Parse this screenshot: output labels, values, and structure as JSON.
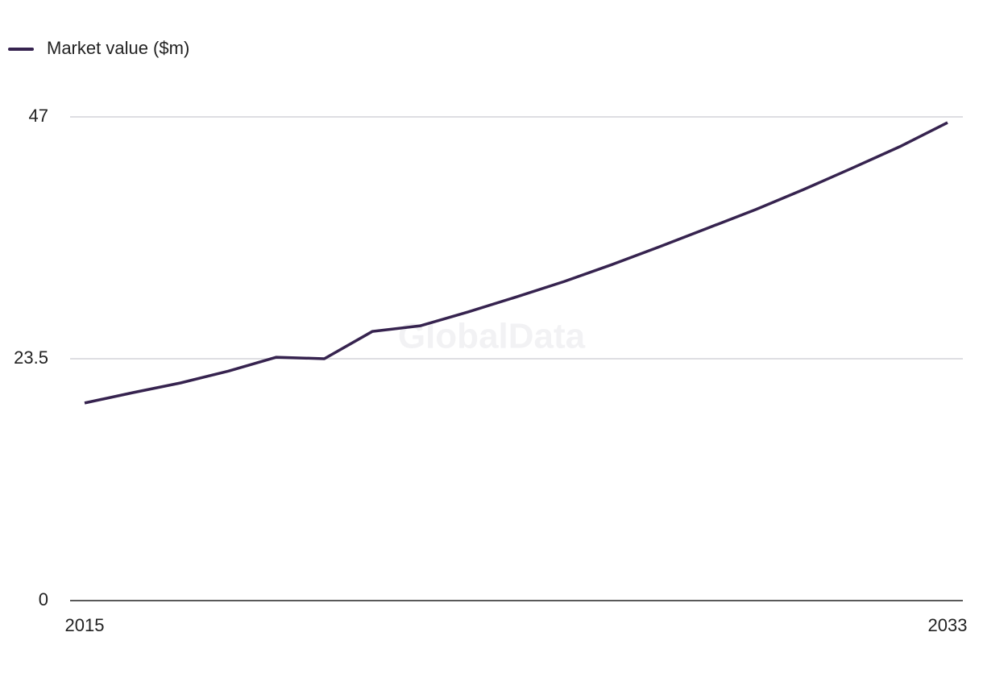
{
  "chart_data": {
    "type": "line",
    "watermark": "GlobalData",
    "x": [
      2015,
      2016,
      2017,
      2018,
      2019,
      2020,
      2021,
      2022,
      2023,
      2024,
      2025,
      2026,
      2027,
      2028,
      2029,
      2030,
      2031,
      2032,
      2033
    ],
    "series": [
      {
        "name": "Market value ($m)",
        "color": "#36234f",
        "values": [
          19.2,
          20.2,
          21.15,
          22.3,
          23.65,
          23.5,
          26.15,
          26.7,
          28.05,
          29.5,
          31.0,
          32.65,
          34.4,
          36.2,
          38.0,
          39.95,
          42.0,
          44.1,
          46.45
        ]
      }
    ],
    "xlim": [
      2015,
      2033
    ],
    "xticks": [
      2015,
      2033
    ],
    "ylim": [
      0,
      47
    ],
    "yticks": [
      0,
      23.5,
      47
    ],
    "grid": true,
    "legend": "top-left"
  }
}
